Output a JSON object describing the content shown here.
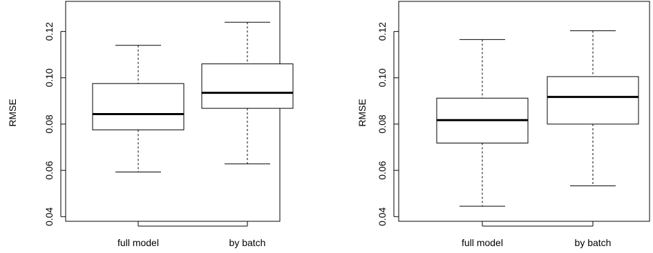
{
  "chart_data": [
    {
      "type": "box",
      "categories": [
        "full model",
        "by batch"
      ],
      "ylabel": "RMSE",
      "xlabel": "",
      "title": "",
      "ylim": [
        0.038,
        0.133
      ],
      "yticks": [
        "0.04",
        "0.06",
        "0.08",
        "0.10",
        "0.12"
      ],
      "grid": false,
      "boxes": [
        {
          "category": "full model",
          "min": 0.0593,
          "q1": 0.0775,
          "median": 0.0843,
          "q3": 0.0975,
          "max": 0.114
        },
        {
          "category": "by batch",
          "min": 0.0628,
          "q1": 0.0868,
          "median": 0.0935,
          "q3": 0.106,
          "max": 0.124
        }
      ]
    },
    {
      "type": "box",
      "categories": [
        "full model",
        "by batch"
      ],
      "ylabel": "RMSE",
      "xlabel": "",
      "title": "",
      "ylim": [
        0.038,
        0.133
      ],
      "yticks": [
        "0.04",
        "0.06",
        "0.08",
        "0.10",
        "0.12"
      ],
      "grid": false,
      "boxes": [
        {
          "category": "full model",
          "min": 0.0445,
          "q1": 0.0718,
          "median": 0.0817,
          "q3": 0.0912,
          "max": 0.1165
        },
        {
          "category": "by batch",
          "min": 0.0533,
          "q1": 0.08,
          "median": 0.0917,
          "q3": 0.1005,
          "max": 0.1203
        }
      ]
    }
  ]
}
